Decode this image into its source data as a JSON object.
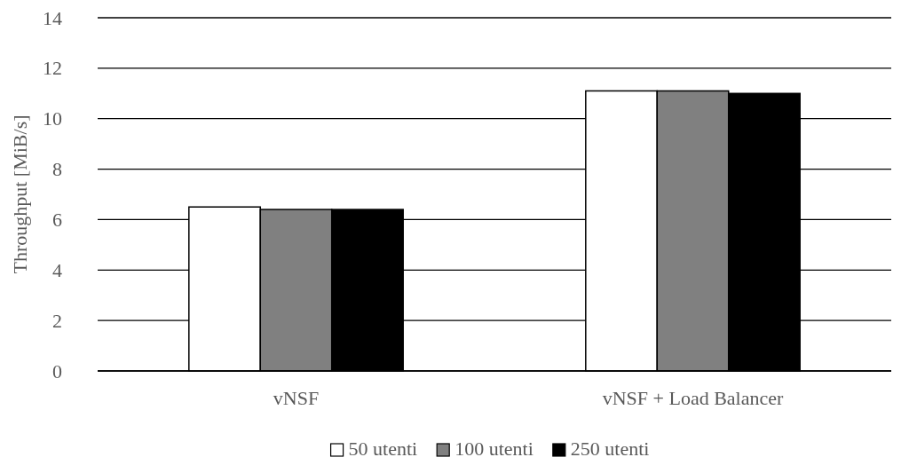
{
  "chart_data": {
    "type": "bar",
    "ylabel": "Throughput [MiB/s]",
    "categories": [
      "vNSF",
      "vNSF + Load Balancer"
    ],
    "series": [
      {
        "name": "50 utenti",
        "color": "#ffffff",
        "values": [
          6.5,
          11.1
        ]
      },
      {
        "name": "100 utenti",
        "color": "#808080",
        "values": [
          6.4,
          11.1
        ]
      },
      {
        "name": "250 utenti",
        "color": "#000000",
        "values": [
          6.4,
          11.0
        ]
      }
    ],
    "ylim": [
      0,
      14
    ],
    "yticks": [
      0,
      2,
      4,
      6,
      8,
      10,
      12,
      14
    ],
    "grid": "y",
    "legend": "bottom"
  }
}
